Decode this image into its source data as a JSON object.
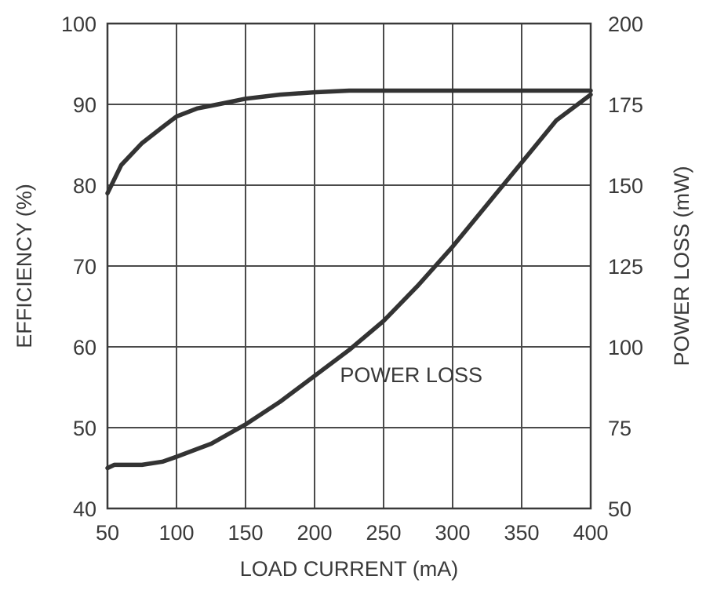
{
  "chart_data": {
    "type": "line",
    "xlabel": "LOAD CURRENT (mA)",
    "ylabel_left": "EFFICIENCY (%)",
    "ylabel_right": "POWER LOSS (mW)",
    "xlim": [
      50,
      400
    ],
    "ylim_left": [
      40,
      100
    ],
    "ylim_right": [
      50,
      200
    ],
    "x_ticks": [
      50,
      100,
      150,
      200,
      250,
      300,
      350,
      400
    ],
    "y_ticks_left": [
      40,
      50,
      60,
      70,
      80,
      90,
      100
    ],
    "y_ticks_right": [
      50,
      75,
      100,
      125,
      150,
      175,
      200
    ],
    "grid": true,
    "annotations": [
      {
        "text": "POWER LOSS",
        "x": 270,
        "y_left": 56.5
      }
    ],
    "series": [
      {
        "axis": "left",
        "x": [
          50,
          60,
          75,
          90,
          100,
          115,
          130,
          150,
          175,
          200,
          225,
          250,
          300,
          350,
          400
        ],
        "values": [
          79,
          82.5,
          85.2,
          87.2,
          88.5,
          89.5,
          90,
          90.7,
          91.2,
          91.5,
          91.7,
          91.7,
          91.7,
          91.7,
          91.7
        ]
      },
      {
        "axis": "right",
        "x": [
          50,
          55,
          75,
          90,
          100,
          125,
          150,
          175,
          200,
          225,
          250,
          275,
          300,
          325,
          350,
          375,
          400
        ],
        "values": [
          62.5,
          63.5,
          63.5,
          64.5,
          66,
          70,
          76,
          83,
          91,
          99,
          108,
          119,
          131,
          144,
          157,
          170,
          178
        ]
      }
    ]
  }
}
